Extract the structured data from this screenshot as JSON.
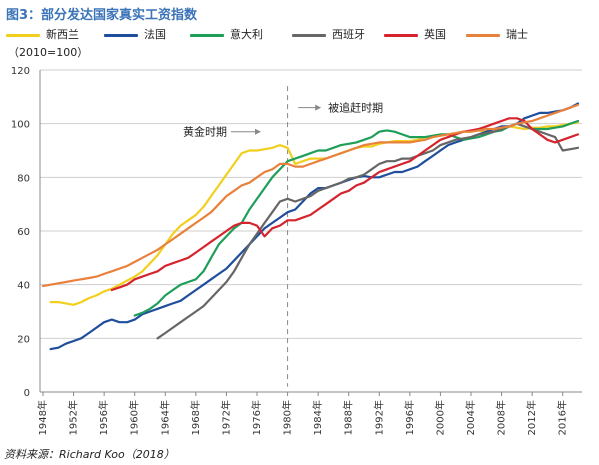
{
  "title": "图3：部分发达国家真实工资指数",
  "unit_label": "（2010=100）",
  "source": "资料来源：Richard Koo（2018）",
  "chart_data": {
    "type": "line",
    "title": "图3：部分发达国家真实工资指数",
    "ylabel": "（2010=100）",
    "xlim": [
      1948,
      2018
    ],
    "ylim": [
      0,
      120
    ],
    "yticks": [
      0,
      20,
      40,
      60,
      80,
      100,
      120
    ],
    "xticks": [
      "1948年",
      "1952年",
      "1956年",
      "1960年",
      "1964年",
      "1968年",
      "1972年",
      "1976年",
      "1980年",
      "1984年",
      "1988年",
      "1992年",
      "1996年",
      "2000年",
      "2004年",
      "2008年",
      "2012年",
      "2016年"
    ],
    "grid": "horizontal",
    "legend": "top",
    "annotations": [
      {
        "text": "黄金时期",
        "arrow": "right",
        "x": 1976,
        "y": 97
      },
      {
        "text": "被追赶时期",
        "arrow": "right",
        "x": 1984,
        "y": 106
      }
    ],
    "divider_x": 1980,
    "series": [
      {
        "name": "新西兰",
        "color": "#f2cf1d",
        "x": [
          1949,
          1950,
          1951,
          1952,
          1953,
          1954,
          1955,
          1956,
          1957,
          1958,
          1959,
          1960,
          1961,
          1962,
          1963,
          1964,
          1965,
          1966,
          1967,
          1968,
          1969,
          1970,
          1971,
          1972,
          1973,
          1974,
          1975,
          1976,
          1977,
          1978,
          1979,
          1980,
          1981,
          1982,
          1983,
          1984,
          1985,
          1986,
          1987,
          1988,
          1989,
          1990,
          1991,
          1992,
          1993,
          1994,
          1995,
          1996,
          1997,
          1998,
          1999,
          2000,
          2001,
          2002,
          2003,
          2004,
          2005,
          2006,
          2007,
          2008,
          2009,
          2010,
          2011,
          2012,
          2013,
          2014,
          2015,
          2016,
          2017,
          2018
        ],
        "y": [
          33.5,
          33.5,
          33,
          32.5,
          33.5,
          35,
          36,
          37.5,
          38.5,
          40,
          41.5,
          43,
          45,
          48,
          51,
          55,
          59,
          62,
          64,
          66,
          69,
          73,
          77,
          81,
          85,
          89,
          90,
          90,
          90.5,
          91,
          92,
          91,
          85,
          86,
          87,
          87,
          87,
          88,
          89,
          90,
          91,
          91.5,
          91.5,
          92.5,
          93,
          93.5,
          93.5,
          93.5,
          94,
          95,
          95,
          95.5,
          96,
          96.5,
          97,
          97,
          97.5,
          97,
          98,
          98.5,
          99,
          98.5,
          98,
          98.5,
          98.5,
          99,
          99,
          99.5,
          100,
          100.5
        ]
      },
      {
        "name": "法国",
        "color": "#1f4e9c",
        "x": [
          1949,
          1950,
          1951,
          1952,
          1953,
          1954,
          1955,
          1956,
          1957,
          1958,
          1959,
          1960,
          1961,
          1962,
          1963,
          1964,
          1965,
          1966,
          1967,
          1968,
          1969,
          1970,
          1971,
          1972,
          1973,
          1974,
          1975,
          1976,
          1977,
          1978,
          1979,
          1980,
          1981,
          1982,
          1983,
          1984,
          1985,
          1986,
          1987,
          1988,
          1989,
          1990,
          1991,
          1992,
          1993,
          1994,
          1995,
          1996,
          1997,
          1998,
          1999,
          2000,
          2001,
          2002,
          2003,
          2004,
          2005,
          2006,
          2007,
          2008,
          2009,
          2010,
          2011,
          2012,
          2013,
          2014,
          2015,
          2016,
          2017,
          2018
        ],
        "y": [
          16,
          16.5,
          18,
          19,
          20,
          22,
          24,
          26,
          27,
          26,
          26,
          27,
          29,
          30,
          31,
          32,
          33,
          34,
          36,
          38,
          40,
          42,
          44,
          46,
          49,
          52,
          55,
          58,
          61,
          63,
          65,
          67,
          68,
          71,
          74,
          76,
          76,
          77,
          78,
          79,
          80,
          80.5,
          80,
          80,
          81,
          82,
          82,
          83,
          84,
          86,
          88,
          90,
          92,
          93,
          94,
          95,
          96,
          97,
          98,
          99,
          99,
          100,
          102,
          103,
          104,
          104,
          104.5,
          105,
          106,
          107.5
        ]
      },
      {
        "name": "意大利",
        "color": "#1f9e5a",
        "x": [
          1960,
          1961,
          1962,
          1963,
          1964,
          1965,
          1966,
          1967,
          1968,
          1969,
          1970,
          1971,
          1972,
          1973,
          1974,
          1975,
          1976,
          1977,
          1978,
          1979,
          1980,
          1981,
          1982,
          1983,
          1984,
          1985,
          1986,
          1987,
          1988,
          1989,
          1990,
          1991,
          1992,
          1993,
          1994,
          1995,
          1996,
          1997,
          1998,
          1999,
          2000,
          2001,
          2002,
          2003,
          2004,
          2005,
          2006,
          2007,
          2008,
          2009,
          2010,
          2011,
          2012,
          2013,
          2014,
          2015,
          2016,
          2017,
          2018
        ],
        "y": [
          28.5,
          29.5,
          31,
          33,
          36,
          38,
          40,
          41,
          42,
          45,
          50,
          55,
          58,
          61,
          63,
          68,
          72,
          76,
          80,
          83,
          86,
          87,
          88,
          89,
          90,
          90,
          91,
          92,
          92.5,
          93,
          94,
          95,
          97,
          97.5,
          97,
          96,
          95,
          95,
          95,
          95.5,
          96,
          96,
          95,
          94,
          94.5,
          95,
          96,
          97,
          97.5,
          99,
          100,
          99,
          98,
          98,
          98,
          98.5,
          99,
          100,
          101
        ]
      },
      {
        "name": "西班牙",
        "color": "#666666",
        "x": [
          1963,
          1964,
          1965,
          1966,
          1967,
          1968,
          1969,
          1970,
          1971,
          1972,
          1973,
          1974,
          1975,
          1976,
          1977,
          1978,
          1979,
          1980,
          1981,
          1982,
          1983,
          1984,
          1985,
          1986,
          1987,
          1988,
          1989,
          1990,
          1991,
          1992,
          1993,
          1994,
          1995,
          1996,
          1997,
          1998,
          1999,
          2000,
          2001,
          2002,
          2003,
          2004,
          2005,
          2006,
          2007,
          2008,
          2009,
          2010,
          2011,
          2012,
          2013,
          2014,
          2015,
          2016,
          2017,
          2018
        ],
        "y": [
          20,
          22,
          24,
          26,
          28,
          30,
          32,
          35,
          38,
          41,
          45,
          50,
          55,
          59,
          63,
          67,
          71,
          72,
          71,
          72,
          73,
          75,
          76,
          77,
          78,
          79.5,
          80,
          81,
          83,
          85,
          86,
          86,
          87,
          87,
          88,
          89,
          90,
          92,
          93,
          94,
          94.5,
          95,
          96,
          96.5,
          97,
          98,
          99,
          100,
          99,
          98,
          97,
          96,
          95,
          90,
          90.5,
          91
        ]
      },
      {
        "name": "英国",
        "color": "#d6242e",
        "x": [
          1957,
          1958,
          1959,
          1960,
          1961,
          1962,
          1963,
          1964,
          1965,
          1966,
          1967,
          1968,
          1969,
          1970,
          1971,
          1972,
          1973,
          1974,
          1975,
          1976,
          1977,
          1978,
          1979,
          1980,
          1981,
          1982,
          1983,
          1984,
          1985,
          1986,
          1987,
          1988,
          1989,
          1990,
          1991,
          1992,
          1993,
          1994,
          1995,
          1996,
          1997,
          1998,
          1999,
          2000,
          2001,
          2002,
          2003,
          2004,
          2005,
          2006,
          2007,
          2008,
          2009,
          2010,
          2011,
          2012,
          2013,
          2014,
          2015,
          2016,
          2017,
          2018
        ],
        "y": [
          38,
          39,
          40,
          42,
          43,
          44,
          45,
          47,
          48,
          49,
          50,
          52,
          54,
          56,
          58,
          60,
          62,
          63,
          63,
          62,
          58,
          61,
          62,
          64,
          64,
          65,
          66,
          68,
          70,
          72,
          74,
          75,
          77,
          78,
          80,
          82,
          83,
          84,
          85,
          86,
          88,
          90,
          92,
          94,
          95,
          96,
          97,
          97.5,
          98,
          99,
          100,
          101,
          102,
          102,
          101,
          98,
          96,
          94,
          93,
          94,
          95,
          96
        ]
      },
      {
        "name": "瑞士",
        "color": "#e8813c",
        "x": [
          1948,
          1949,
          1950,
          1951,
          1952,
          1953,
          1954,
          1955,
          1956,
          1957,
          1958,
          1959,
          1960,
          1961,
          1962,
          1963,
          1964,
          1965,
          1966,
          1967,
          1968,
          1969,
          1970,
          1971,
          1972,
          1973,
          1974,
          1975,
          1976,
          1977,
          1978,
          1979,
          1980,
          1981,
          1982,
          1983,
          1984,
          1985,
          1986,
          1987,
          1988,
          1989,
          1990,
          1991,
          1992,
          1993,
          1994,
          1995,
          1996,
          1997,
          1998,
          1999,
          2000,
          2001,
          2002,
          2003,
          2004,
          2005,
          2006,
          2007,
          2008,
          2009,
          2010,
          2011,
          2012,
          2013,
          2014,
          2015,
          2016,
          2017,
          2018
        ],
        "y": [
          39.5,
          40,
          40.5,
          41,
          41.5,
          42,
          42.5,
          43,
          44,
          45,
          46,
          47,
          48.5,
          50,
          51.5,
          53,
          55,
          57,
          59,
          61,
          63,
          65,
          67,
          70,
          73,
          75,
          77,
          78,
          80,
          82,
          83,
          85,
          85,
          84,
          84,
          85,
          86,
          87,
          88,
          89,
          90,
          91,
          92,
          92.5,
          93,
          93,
          93,
          93,
          93,
          93.5,
          94,
          95,
          95.5,
          96,
          96.5,
          97,
          97,
          97.5,
          98,
          98,
          98.5,
          99,
          100,
          100.5,
          101,
          102,
          103,
          104,
          105,
          106,
          107
        ]
      }
    ]
  }
}
